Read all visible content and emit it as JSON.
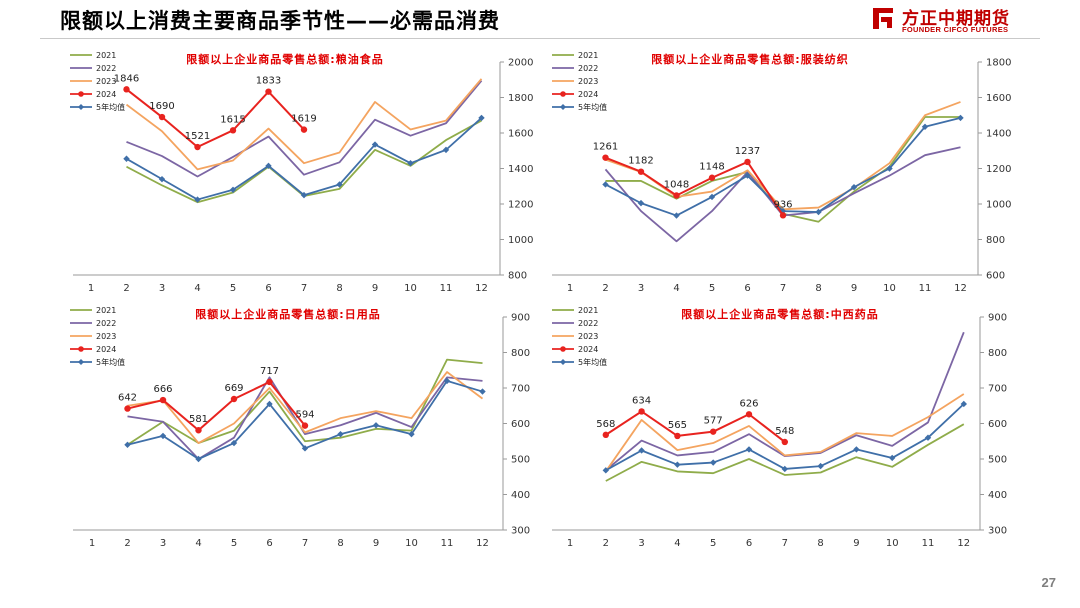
{
  "page": {
    "title": "限额以上消费主要商品季节性——必需品消费",
    "page_number": "27"
  },
  "logo": {
    "name_cn": "方正中期期货",
    "name_en": "FOUNDER CIFCO FUTURES",
    "color": "#c00000"
  },
  "series_colors": {
    "2021": "#8fac4a",
    "2022": "#7c66a4",
    "2023": "#f4a460",
    "2024": "#e8231f",
    "5年均值": "#3f6fa8"
  },
  "chart_data": [
    {
      "type": "line",
      "title": "限额以上企业商品零售总额:粮油食品",
      "x": [
        1,
        2,
        3,
        4,
        5,
        6,
        7,
        8,
        9,
        10,
        11,
        12
      ],
      "ylim": [
        800,
        2000
      ],
      "yticks": [
        800,
        1000,
        1200,
        1400,
        1600,
        1800,
        2000
      ],
      "y_axis_side": "right",
      "legend_position": "top-left",
      "series": [
        {
          "name": "2021",
          "values": [
            null,
            1410,
            1305,
            1210,
            1265,
            1410,
            1245,
            1285,
            1505,
            1415,
            1560,
            1670
          ]
        },
        {
          "name": "2022",
          "values": [
            null,
            1550,
            1470,
            1355,
            1465,
            1580,
            1365,
            1435,
            1675,
            1585,
            1655,
            1895
          ]
        },
        {
          "name": "2023",
          "values": [
            null,
            1760,
            1610,
            1395,
            1445,
            1625,
            1430,
            1490,
            1775,
            1620,
            1670,
            1905
          ]
        },
        {
          "name": "2024",
          "values": [
            null,
            1846,
            1690,
            1521,
            1615,
            1833,
            1619,
            null,
            null,
            null,
            null,
            null
          ],
          "data_labels": [
            "",
            "1846",
            "1690",
            "1521",
            "1615",
            "1833",
            "1619",
            "",
            "",
            "",
            "",
            ""
          ]
        },
        {
          "name": "5年均值",
          "values": [
            null,
            1455,
            1340,
            1225,
            1280,
            1415,
            1250,
            1310,
            1535,
            1430,
            1505,
            1685
          ]
        }
      ]
    },
    {
      "type": "line",
      "title": "限额以上企业商品零售总额:服装纺织",
      "x": [
        1,
        2,
        3,
        4,
        5,
        6,
        7,
        8,
        9,
        10,
        11,
        12
      ],
      "ylim": [
        600,
        1800
      ],
      "yticks": [
        600,
        800,
        1000,
        1200,
        1400,
        1600,
        1800
      ],
      "y_axis_side": "right",
      "legend_position": "top-left",
      "series": [
        {
          "name": "2021",
          "values": [
            null,
            1130,
            1130,
            1030,
            1130,
            1180,
            945,
            900,
            1070,
            1210,
            1490,
            1490
          ]
        },
        {
          "name": "2022",
          "values": [
            null,
            1195,
            960,
            790,
            960,
            1180,
            935,
            955,
            1060,
            1160,
            1275,
            1320
          ]
        },
        {
          "name": "2023",
          "values": [
            null,
            1250,
            1180,
            1040,
            1070,
            1190,
            970,
            980,
            1090,
            1230,
            1500,
            1575
          ]
        },
        {
          "name": "2024",
          "values": [
            null,
            1261,
            1182,
            1048,
            1148,
            1237,
            936,
            null,
            null,
            null,
            null,
            null
          ],
          "data_labels": [
            "",
            "1261",
            "1182",
            "1048",
            "1148",
            "1237",
            "936",
            "",
            "",
            "",
            "",
            ""
          ]
        },
        {
          "name": "5年均值",
          "values": [
            null,
            1110,
            1005,
            935,
            1040,
            1160,
            960,
            955,
            1095,
            1200,
            1435,
            1485
          ]
        }
      ]
    },
    {
      "type": "line",
      "title": "限额以上企业商品零售总额:日用品",
      "x": [
        1,
        2,
        3,
        4,
        5,
        6,
        7,
        8,
        9,
        10,
        11,
        12
      ],
      "ylim": [
        300,
        900
      ],
      "yticks": [
        300,
        400,
        500,
        600,
        700,
        800,
        900
      ],
      "y_axis_side": "right",
      "legend_position": "top-left",
      "series": [
        {
          "name": "2021",
          "values": [
            null,
            540,
            605,
            545,
            580,
            690,
            550,
            560,
            585,
            580,
            780,
            770
          ]
        },
        {
          "name": "2022",
          "values": [
            null,
            620,
            605,
            500,
            560,
            730,
            570,
            595,
            630,
            590,
            730,
            720
          ]
        },
        {
          "name": "2023",
          "values": [
            null,
            650,
            665,
            545,
            600,
            700,
            575,
            615,
            635,
            615,
            745,
            670
          ]
        },
        {
          "name": "2024",
          "values": [
            null,
            642,
            666,
            581,
            669,
            717,
            594,
            null,
            null,
            null,
            null,
            null
          ],
          "data_labels": [
            "",
            "642",
            "666",
            "581",
            "669",
            "717",
            "594",
            "",
            "",
            "",
            "",
            ""
          ]
        },
        {
          "name": "5年均值",
          "values": [
            null,
            540,
            565,
            500,
            545,
            655,
            530,
            570,
            595,
            570,
            720,
            690
          ]
        }
      ]
    },
    {
      "type": "line",
      "title": "限额以上企业商品零售总额:中西药品",
      "x": [
        1,
        2,
        3,
        4,
        5,
        6,
        7,
        8,
        9,
        10,
        11,
        12
      ],
      "ylim": [
        300,
        900
      ],
      "yticks": [
        300,
        400,
        500,
        600,
        700,
        800,
        900
      ],
      "y_axis_side": "right",
      "legend_position": "top-left",
      "series": [
        {
          "name": "2021",
          "values": [
            null,
            438,
            492,
            465,
            460,
            500,
            455,
            462,
            505,
            478,
            540,
            598
          ]
        },
        {
          "name": "2022",
          "values": [
            null,
            468,
            552,
            510,
            520,
            570,
            508,
            517,
            567,
            537,
            603,
            857
          ]
        },
        {
          "name": "2023",
          "values": [
            null,
            465,
            610,
            525,
            545,
            593,
            510,
            520,
            573,
            565,
            618,
            683
          ]
        },
        {
          "name": "2024",
          "values": [
            null,
            568,
            634,
            565,
            577,
            626,
            548,
            null,
            null,
            null,
            null,
            null
          ],
          "data_labels": [
            "",
            "568",
            "634",
            "565",
            "577",
            "626",
            "548",
            "",
            "",
            "",
            "",
            ""
          ]
        },
        {
          "name": "5年均值",
          "values": [
            null,
            468,
            524,
            484,
            490,
            527,
            472,
            480,
            527,
            503,
            560,
            655
          ]
        }
      ]
    }
  ]
}
